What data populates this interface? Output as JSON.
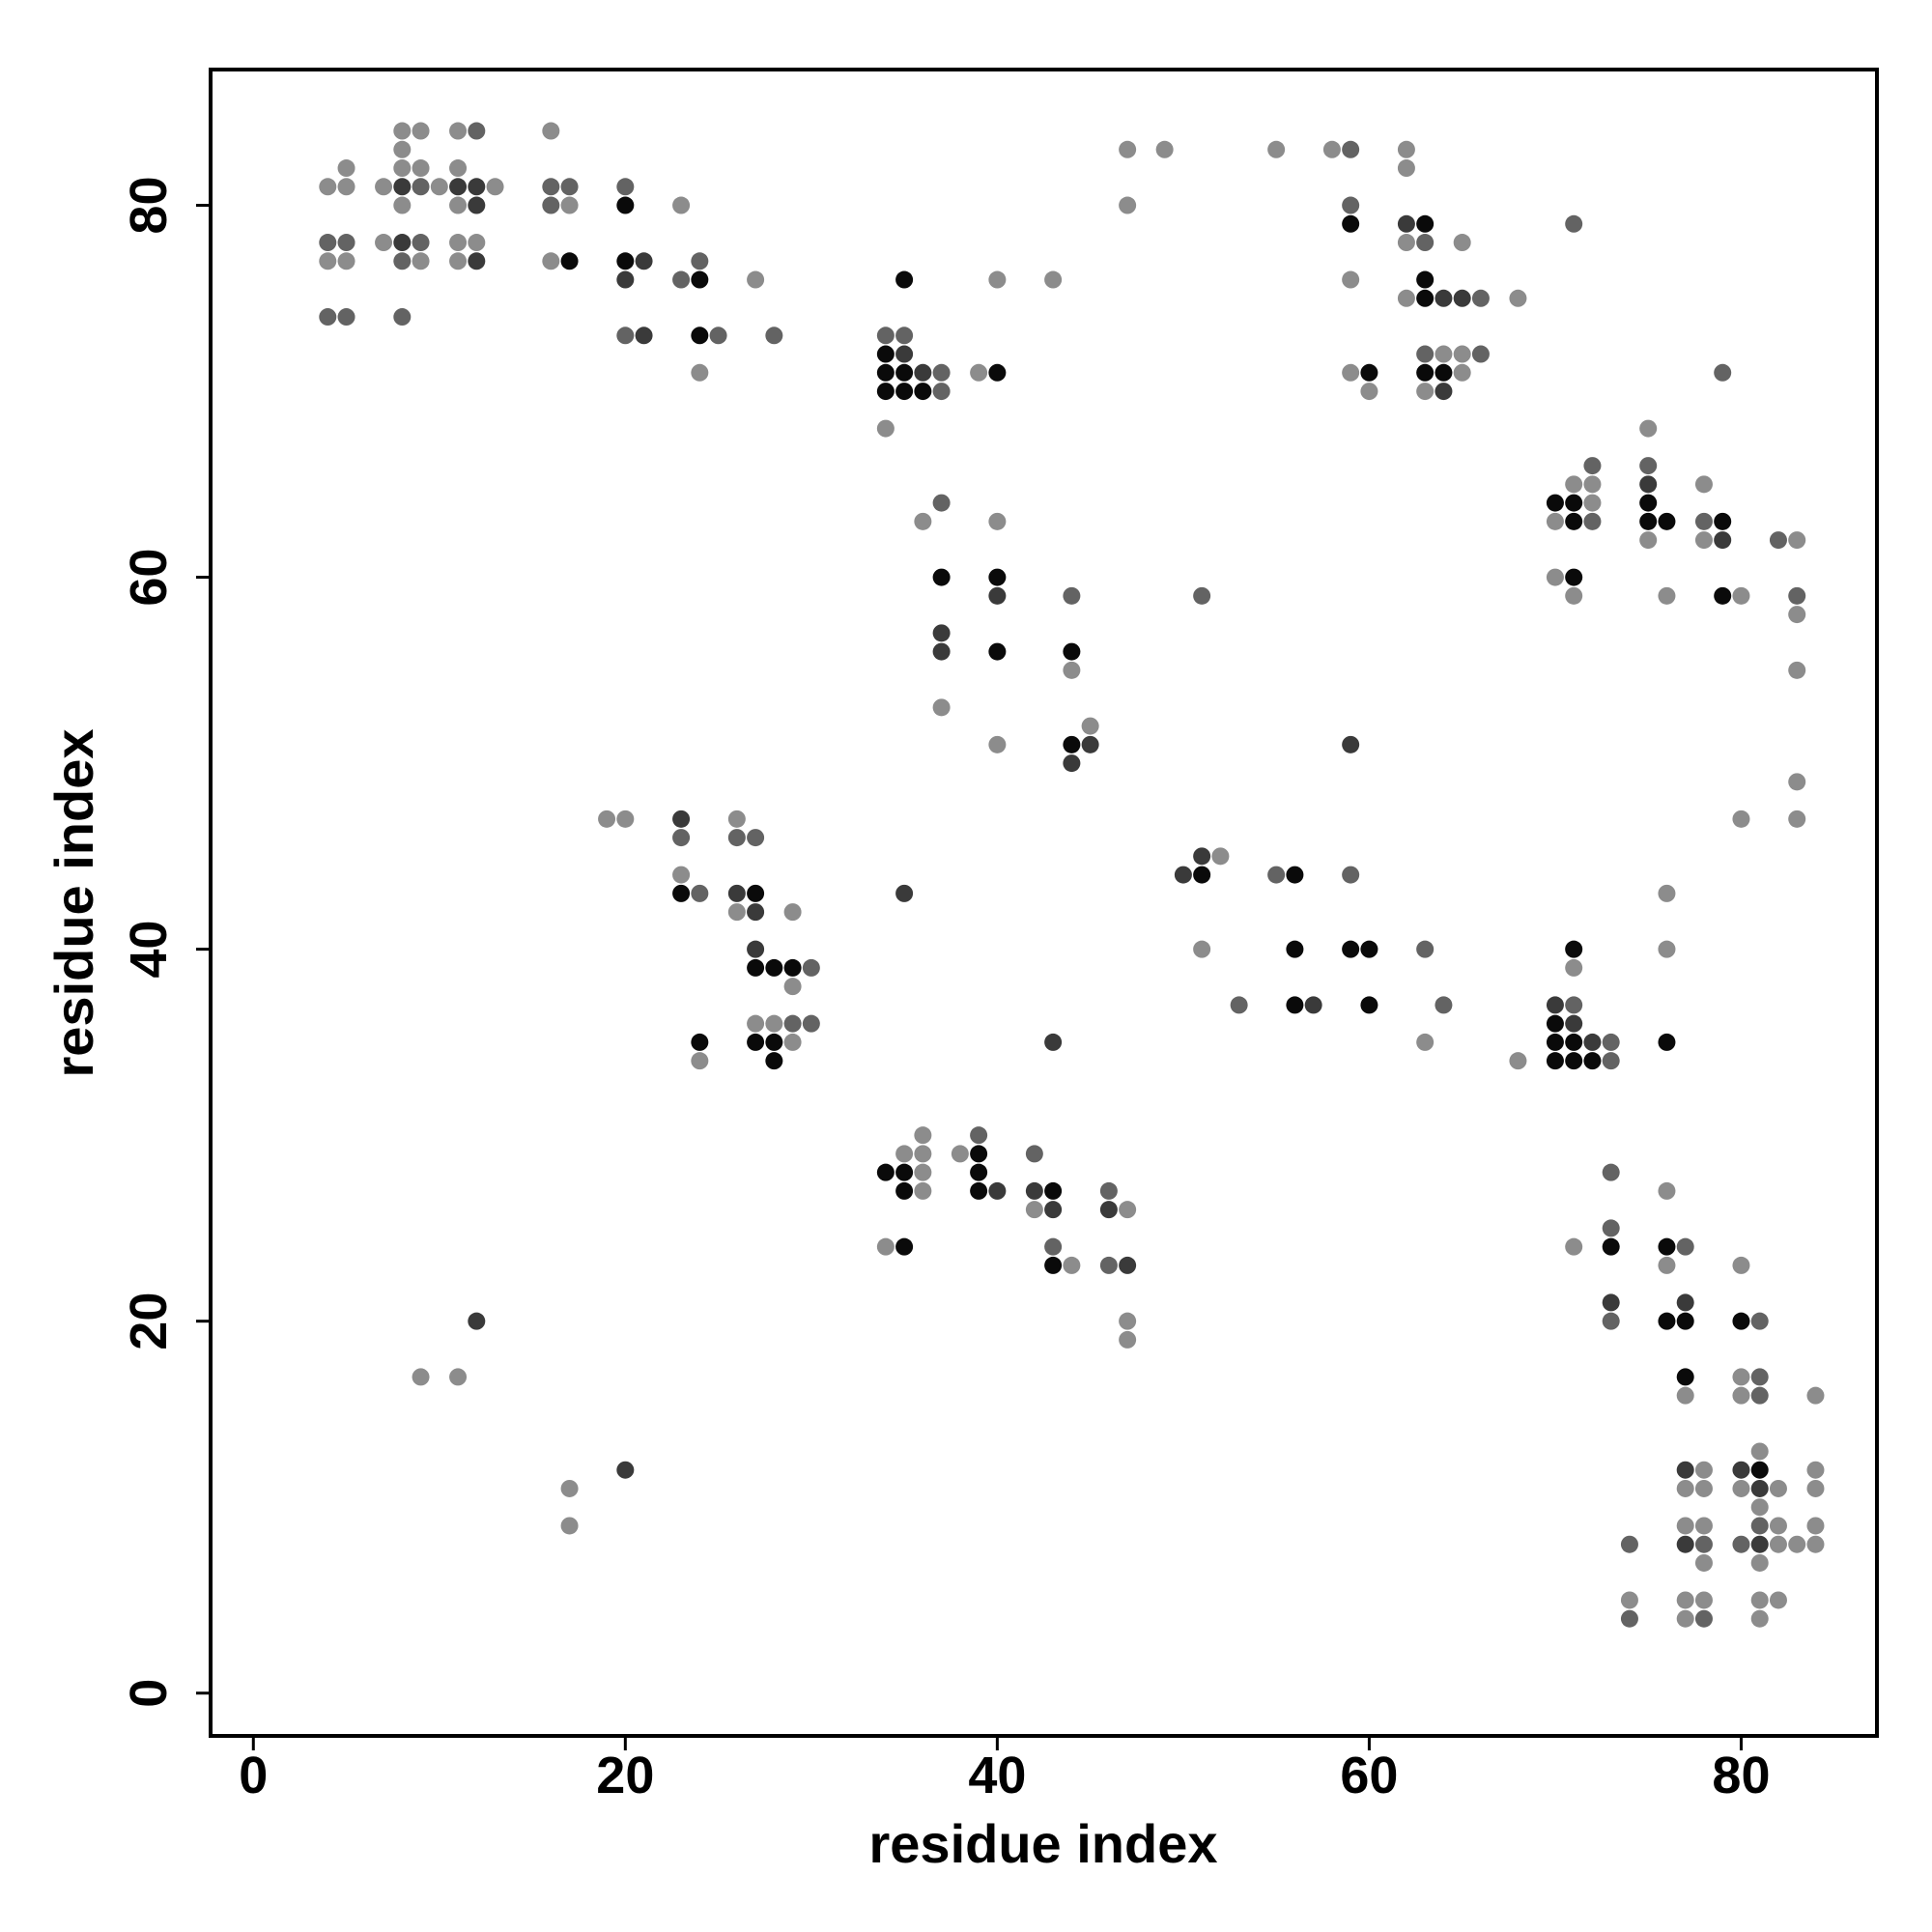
{
  "chart_data": {
    "type": "scatter",
    "xlabel": "residue index",
    "ylabel": "residue index",
    "xlim": [
      -2.3,
      87.3
    ],
    "ylim": [
      -2.3,
      87.3
    ],
    "x_ticks": [
      0,
      20,
      40,
      60,
      80
    ],
    "y_ticks": [
      0,
      20,
      40,
      60,
      80
    ],
    "grid": false,
    "legend": "none",
    "colors": {
      "1": "#8c8c8c",
      "2": "#636363",
      "3": "#3a3a3a",
      "4": "#0a0a0a"
    },
    "points": [
      [
        4,
        81,
        1
      ],
      [
        5,
        82,
        1
      ],
      [
        5,
        81,
        1
      ],
      [
        4,
        78,
        2
      ],
      [
        5,
        78,
        2
      ],
      [
        4,
        77,
        1
      ],
      [
        5,
        77,
        1
      ],
      [
        4,
        74,
        2
      ],
      [
        5,
        74,
        2
      ],
      [
        8,
        84,
        1
      ],
      [
        9,
        84,
        1
      ],
      [
        8,
        83,
        1
      ],
      [
        8,
        82,
        1
      ],
      [
        9,
        82,
        1
      ],
      [
        7,
        81,
        1
      ],
      [
        8,
        81,
        3
      ],
      [
        9,
        81,
        2
      ],
      [
        10,
        81,
        1
      ],
      [
        8,
        80,
        1
      ],
      [
        7,
        78,
        1
      ],
      [
        8,
        78,
        3
      ],
      [
        9,
        78,
        2
      ],
      [
        8,
        77,
        2
      ],
      [
        9,
        77,
        1
      ],
      [
        8,
        74,
        2
      ],
      [
        11,
        84,
        1
      ],
      [
        12,
        84,
        2
      ],
      [
        11,
        82,
        1
      ],
      [
        11,
        81,
        3
      ],
      [
        12,
        81,
        3
      ],
      [
        13,
        81,
        1
      ],
      [
        11,
        80,
        1
      ],
      [
        12,
        80,
        3
      ],
      [
        11,
        78,
        1
      ],
      [
        12,
        78,
        1
      ],
      [
        11,
        77,
        1
      ],
      [
        12,
        77,
        3
      ],
      [
        16,
        84,
        1
      ],
      [
        16,
        81,
        2
      ],
      [
        17,
        81,
        2
      ],
      [
        16,
        80,
        2
      ],
      [
        17,
        80,
        1
      ],
      [
        16,
        77,
        1
      ],
      [
        17,
        77,
        4
      ],
      [
        20,
        81,
        2
      ],
      [
        20,
        80,
        4
      ],
      [
        20,
        77,
        4
      ],
      [
        21,
        77,
        3
      ],
      [
        20,
        76,
        3
      ],
      [
        20,
        73,
        2
      ],
      [
        21,
        73,
        3
      ],
      [
        23,
        80,
        1
      ],
      [
        23,
        76,
        2
      ],
      [
        24,
        77,
        2
      ],
      [
        24,
        76,
        4
      ],
      [
        24,
        73,
        4
      ],
      [
        25,
        73,
        2
      ],
      [
        24,
        71,
        1
      ],
      [
        27,
        76,
        1
      ],
      [
        28,
        73,
        2
      ],
      [
        34,
        73,
        2
      ],
      [
        35,
        73,
        2
      ],
      [
        34,
        72,
        4
      ],
      [
        35,
        72,
        3
      ],
      [
        34,
        71,
        4
      ],
      [
        35,
        71,
        4
      ],
      [
        36,
        71,
        3
      ],
      [
        37,
        71,
        2
      ],
      [
        34,
        70,
        4
      ],
      [
        35,
        70,
        4
      ],
      [
        36,
        70,
        4
      ],
      [
        37,
        70,
        2
      ],
      [
        35,
        76,
        4
      ],
      [
        34,
        68,
        1
      ],
      [
        39,
        71,
        1
      ],
      [
        40,
        71,
        4
      ],
      [
        40,
        76,
        1
      ],
      [
        43,
        76,
        1
      ],
      [
        47,
        83,
        1
      ],
      [
        49,
        83,
        1
      ],
      [
        47,
        80,
        1
      ],
      [
        55,
        83,
        1
      ],
      [
        58,
        83,
        1
      ],
      [
        59,
        83,
        2
      ],
      [
        62,
        83,
        1
      ],
      [
        62,
        82,
        1
      ],
      [
        59,
        80,
        2
      ],
      [
        59,
        79,
        4
      ],
      [
        59,
        76,
        1
      ],
      [
        59,
        71,
        1
      ],
      [
        60,
        71,
        4
      ],
      [
        60,
        70,
        1
      ],
      [
        62,
        79,
        3
      ],
      [
        63,
        79,
        4
      ],
      [
        62,
        78,
        1
      ],
      [
        63,
        78,
        2
      ],
      [
        65,
        78,
        1
      ],
      [
        63,
        76,
        4
      ],
      [
        62,
        75,
        1
      ],
      [
        63,
        75,
        4
      ],
      [
        64,
        75,
        3
      ],
      [
        65,
        75,
        3
      ],
      [
        66,
        75,
        2
      ],
      [
        68,
        75,
        1
      ],
      [
        63,
        72,
        2
      ],
      [
        64,
        72,
        1
      ],
      [
        65,
        72,
        1
      ],
      [
        66,
        72,
        2
      ],
      [
        63,
        71,
        4
      ],
      [
        64,
        71,
        4
      ],
      [
        65,
        71,
        1
      ],
      [
        63,
        70,
        1
      ],
      [
        64,
        70,
        3
      ],
      [
        71,
        79,
        2
      ],
      [
        37,
        64,
        2
      ],
      [
        36,
        63,
        1
      ],
      [
        40,
        63,
        1
      ],
      [
        37,
        60,
        4
      ],
      [
        40,
        60,
        4
      ],
      [
        40,
        59,
        3
      ],
      [
        44,
        59,
        2
      ],
      [
        37,
        57,
        3
      ],
      [
        37,
        56,
        3
      ],
      [
        40,
        56,
        4
      ],
      [
        44,
        56,
        4
      ],
      [
        44,
        55,
        1
      ],
      [
        37,
        53,
        1
      ],
      [
        45,
        52,
        1
      ],
      [
        40,
        51,
        1
      ],
      [
        44,
        51,
        4
      ],
      [
        45,
        51,
        3
      ],
      [
        44,
        50,
        3
      ],
      [
        51,
        59,
        2
      ],
      [
        59,
        51,
        3
      ],
      [
        75,
        68,
        1
      ],
      [
        72,
        66,
        2
      ],
      [
        75,
        66,
        2
      ],
      [
        71,
        65,
        1
      ],
      [
        72,
        65,
        1
      ],
      [
        75,
        65,
        3
      ],
      [
        78,
        65,
        1
      ],
      [
        70,
        64,
        4
      ],
      [
        71,
        64,
        4
      ],
      [
        72,
        64,
        1
      ],
      [
        75,
        64,
        4
      ],
      [
        70,
        63,
        1
      ],
      [
        71,
        63,
        4
      ],
      [
        72,
        63,
        2
      ],
      [
        75,
        63,
        4
      ],
      [
        76,
        63,
        4
      ],
      [
        78,
        63,
        2
      ],
      [
        79,
        63,
        4
      ],
      [
        75,
        62,
        1
      ],
      [
        78,
        62,
        1
      ],
      [
        79,
        62,
        3
      ],
      [
        82,
        62,
        2
      ],
      [
        83,
        62,
        1
      ],
      [
        70,
        60,
        1
      ],
      [
        71,
        60,
        4
      ],
      [
        71,
        59,
        1
      ],
      [
        76,
        59,
        1
      ],
      [
        79,
        59,
        4
      ],
      [
        80,
        59,
        1
      ],
      [
        83,
        59,
        2
      ],
      [
        83,
        58,
        1
      ],
      [
        83,
        55,
        1
      ],
      [
        79,
        71,
        2
      ],
      [
        83,
        49,
        1
      ],
      [
        80,
        47,
        1
      ],
      [
        83,
        47,
        1
      ],
      [
        19,
        47,
        1
      ],
      [
        20,
        47,
        1
      ],
      [
        23,
        47,
        3
      ],
      [
        26,
        47,
        1
      ],
      [
        23,
        46,
        2
      ],
      [
        26,
        46,
        2
      ],
      [
        27,
        46,
        2
      ],
      [
        23,
        44,
        1
      ],
      [
        23,
        43,
        4
      ],
      [
        24,
        43,
        2
      ],
      [
        26,
        43,
        3
      ],
      [
        27,
        43,
        4
      ],
      [
        26,
        42,
        1
      ],
      [
        27,
        42,
        3
      ],
      [
        29,
        42,
        1
      ],
      [
        27,
        40,
        3
      ],
      [
        27,
        39,
        4
      ],
      [
        28,
        39,
        4
      ],
      [
        29,
        39,
        4
      ],
      [
        30,
        39,
        2
      ],
      [
        29,
        38,
        1
      ],
      [
        27,
        36,
        1
      ],
      [
        28,
        36,
        1
      ],
      [
        29,
        36,
        2
      ],
      [
        30,
        36,
        2
      ],
      [
        24,
        35,
        4
      ],
      [
        27,
        35,
        4
      ],
      [
        28,
        35,
        4
      ],
      [
        29,
        35,
        1
      ],
      [
        24,
        34,
        1
      ],
      [
        28,
        34,
        4
      ],
      [
        35,
        43,
        3
      ],
      [
        43,
        35,
        3
      ],
      [
        50,
        44,
        3
      ],
      [
        51,
        44,
        4
      ],
      [
        51,
        45,
        3
      ],
      [
        52,
        45,
        1
      ],
      [
        55,
        44,
        2
      ],
      [
        56,
        44,
        4
      ],
      [
        59,
        44,
        2
      ],
      [
        51,
        40,
        1
      ],
      [
        56,
        40,
        4
      ],
      [
        59,
        40,
        4
      ],
      [
        60,
        40,
        4
      ],
      [
        63,
        40,
        2
      ],
      [
        53,
        37,
        2
      ],
      [
        56,
        37,
        4
      ],
      [
        57,
        37,
        3
      ],
      [
        60,
        37,
        4
      ],
      [
        64,
        37,
        2
      ],
      [
        63,
        35,
        1
      ],
      [
        68,
        34,
        1
      ],
      [
        76,
        43,
        1
      ],
      [
        71,
        40,
        4
      ],
      [
        71,
        39,
        1
      ],
      [
        76,
        40,
        1
      ],
      [
        70,
        37,
        3
      ],
      [
        71,
        37,
        2
      ],
      [
        70,
        36,
        4
      ],
      [
        71,
        36,
        3
      ],
      [
        70,
        35,
        4
      ],
      [
        71,
        35,
        4
      ],
      [
        72,
        35,
        3
      ],
      [
        73,
        35,
        2
      ],
      [
        76,
        35,
        4
      ],
      [
        70,
        34,
        4
      ],
      [
        71,
        34,
        4
      ],
      [
        72,
        34,
        4
      ],
      [
        73,
        34,
        2
      ],
      [
        35,
        29,
        1
      ],
      [
        36,
        29,
        1
      ],
      [
        36,
        30,
        1
      ],
      [
        38,
        29,
        1
      ],
      [
        39,
        29,
        4
      ],
      [
        39,
        30,
        2
      ],
      [
        34,
        28,
        4
      ],
      [
        35,
        28,
        4
      ],
      [
        36,
        28,
        1
      ],
      [
        39,
        28,
        4
      ],
      [
        35,
        27,
        4
      ],
      [
        36,
        27,
        1
      ],
      [
        39,
        27,
        4
      ],
      [
        40,
        27,
        3
      ],
      [
        42,
        29,
        2
      ],
      [
        42,
        27,
        3
      ],
      [
        43,
        27,
        4
      ],
      [
        42,
        26,
        1
      ],
      [
        43,
        26,
        3
      ],
      [
        34,
        24,
        1
      ],
      [
        35,
        24,
        4
      ],
      [
        43,
        24,
        2
      ],
      [
        43,
        23,
        4
      ],
      [
        44,
        23,
        1
      ],
      [
        46,
        27,
        2
      ],
      [
        46,
        26,
        3
      ],
      [
        47,
        26,
        1
      ],
      [
        46,
        23,
        2
      ],
      [
        47,
        23,
        3
      ],
      [
        47,
        20,
        1
      ],
      [
        47,
        19,
        1
      ],
      [
        73,
        28,
        2
      ],
      [
        73,
        25,
        2
      ],
      [
        71,
        24,
        1
      ],
      [
        73,
        24,
        4
      ],
      [
        73,
        21,
        3
      ],
      [
        73,
        20,
        2
      ],
      [
        76,
        27,
        1
      ],
      [
        76,
        24,
        4
      ],
      [
        77,
        24,
        2
      ],
      [
        76,
        23,
        1
      ],
      [
        76,
        20,
        4
      ],
      [
        77,
        20,
        4
      ],
      [
        77,
        21,
        3
      ],
      [
        80,
        23,
        1
      ],
      [
        80,
        20,
        4
      ],
      [
        81,
        20,
        2
      ],
      [
        77,
        17,
        4
      ],
      [
        77,
        16,
        1
      ],
      [
        80,
        17,
        1
      ],
      [
        81,
        17,
        2
      ],
      [
        80,
        16,
        1
      ],
      [
        81,
        16,
        2
      ],
      [
        84,
        16,
        1
      ],
      [
        77,
        12,
        3
      ],
      [
        78,
        12,
        1
      ],
      [
        77,
        11,
        1
      ],
      [
        78,
        11,
        1
      ],
      [
        77,
        9,
        1
      ],
      [
        78,
        9,
        1
      ],
      [
        77,
        8,
        3
      ],
      [
        78,
        8,
        2
      ],
      [
        78,
        7,
        1
      ],
      [
        74,
        8,
        2
      ],
      [
        74,
        5,
        1
      ],
      [
        74,
        4,
        2
      ],
      [
        77,
        5,
        1
      ],
      [
        78,
        5,
        1
      ],
      [
        77,
        4,
        1
      ],
      [
        78,
        4,
        2
      ],
      [
        81,
        13,
        1
      ],
      [
        80,
        12,
        3
      ],
      [
        81,
        12,
        4
      ],
      [
        84,
        12,
        1
      ],
      [
        80,
        11,
        1
      ],
      [
        81,
        11,
        3
      ],
      [
        82,
        11,
        1
      ],
      [
        84,
        11,
        1
      ],
      [
        81,
        10,
        1
      ],
      [
        81,
        9,
        2
      ],
      [
        82,
        9,
        1
      ],
      [
        84,
        9,
        1
      ],
      [
        80,
        8,
        2
      ],
      [
        81,
        8,
        3
      ],
      [
        82,
        8,
        1
      ],
      [
        83,
        8,
        1
      ],
      [
        84,
        8,
        1
      ],
      [
        81,
        7,
        1
      ],
      [
        81,
        5,
        1
      ],
      [
        82,
        5,
        1
      ],
      [
        81,
        4,
        1
      ],
      [
        9,
        17,
        1
      ],
      [
        11,
        17,
        1
      ],
      [
        12,
        20,
        3
      ],
      [
        17,
        11,
        1
      ],
      [
        17,
        9,
        1
      ],
      [
        20,
        12,
        3
      ]
    ]
  }
}
